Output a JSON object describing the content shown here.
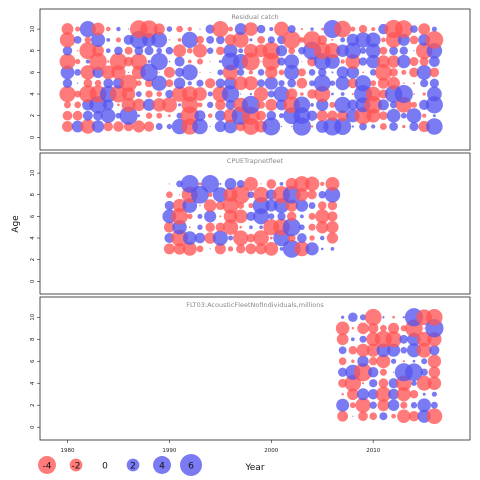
{
  "chart_data": {
    "type": "scatter",
    "xlabel": "Year",
    "ylabel": "Age",
    "xticks": [
      1980,
      1990,
      2000,
      2010
    ],
    "xlim": [
      1977.5,
      2019.3
    ],
    "yticks": [
      0,
      2,
      4,
      6,
      8,
      10
    ],
    "ylim": [
      -0.8,
      11.3
    ],
    "colors": {
      "positive": "#5555ee",
      "negative": "#ff5555"
    },
    "legend": {
      "placement": "bottom",
      "labels": [
        "-4",
        "-2",
        "0",
        "2",
        "4",
        "6"
      ],
      "values": [
        -4,
        -2,
        0,
        2,
        4,
        6
      ]
    },
    "panels": [
      {
        "title": "Residual catch",
        "year_range": [
          1980,
          2016
        ],
        "age_range": [
          1,
          10
        ],
        "seed": 11,
        "pattern": "mixed"
      },
      {
        "title": "CPUETrapnetfleet",
        "year_range": [
          1990,
          2006
        ],
        "age_range": [
          3,
          9
        ],
        "seed": 5,
        "pattern": "mixed"
      },
      {
        "title": "FLT03:AcousticFleetNofIndividuals,millions",
        "year_range": [
          2007,
          2016
        ],
        "age_range": [
          1,
          10
        ],
        "seed": 17,
        "pattern": "mixed"
      }
    ]
  }
}
